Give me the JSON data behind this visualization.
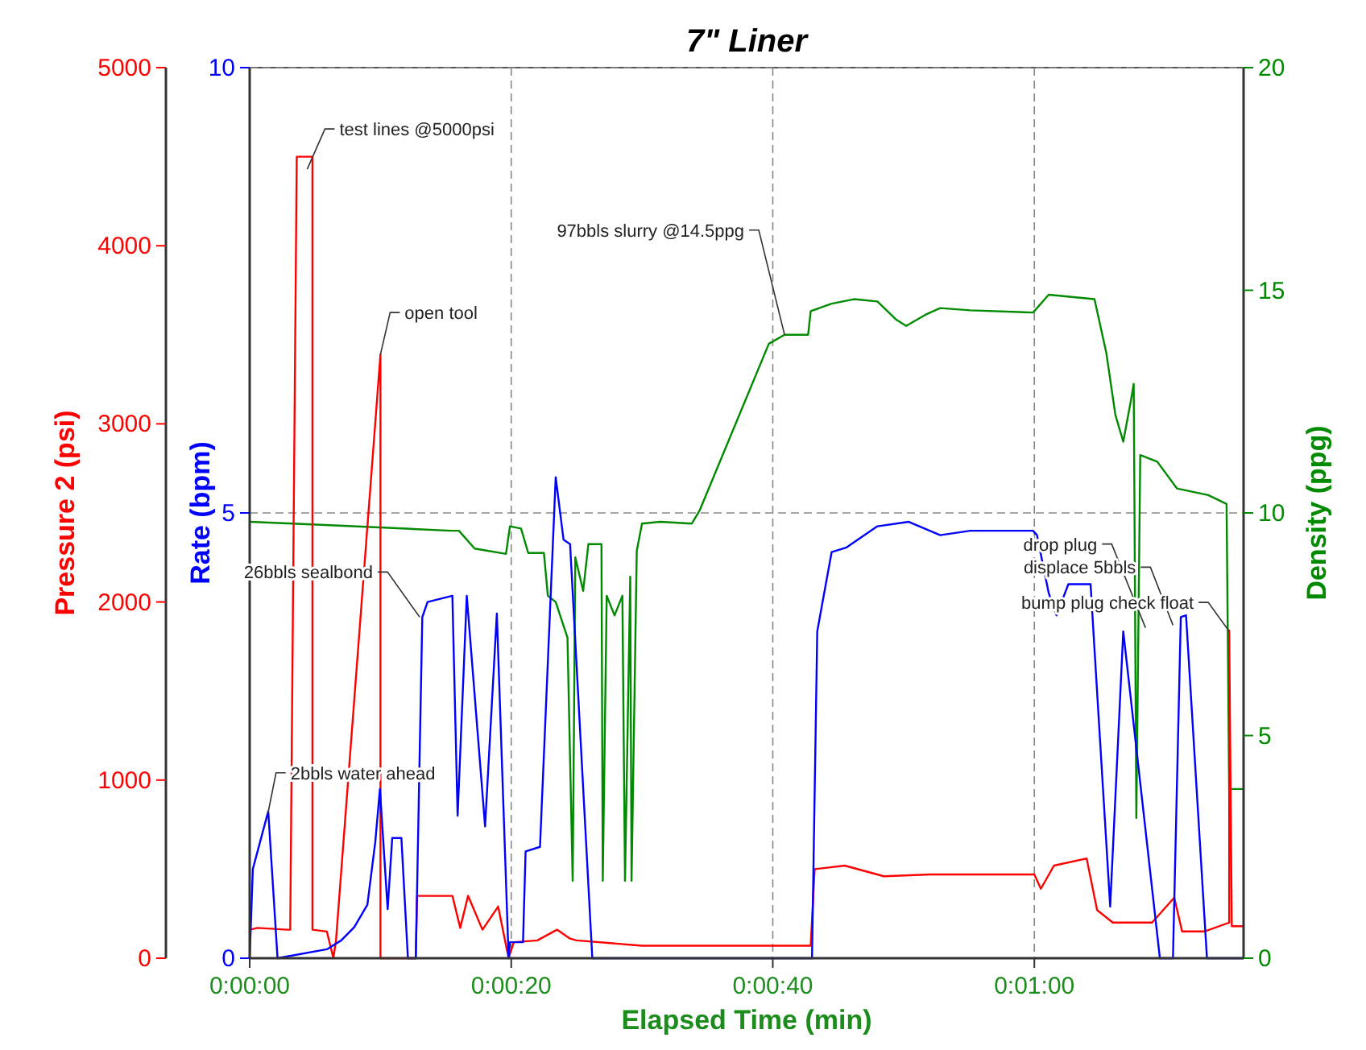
{
  "chart_data": {
    "type": "line",
    "title": "7\" Liner",
    "xlabel": "Elapsed Time (min)",
    "ylabel": "Rate (bpm)",
    "y2label": "Pressure 2 (psi)",
    "y3label": "Density (ppg)",
    "xlim": [
      0,
      76
    ],
    "xticks": [
      {
        "value": 0,
        "label": "0:00:00"
      },
      {
        "value": 20,
        "label": "0:00:20"
      },
      {
        "value": 40,
        "label": "0:00:40"
      },
      {
        "value": 60,
        "label": "0:01:00"
      }
    ],
    "ylim": [
      0,
      10
    ],
    "yticks": [
      0,
      5,
      10
    ],
    "y2lim": [
      0,
      5000
    ],
    "y2ticks": [
      0,
      1000,
      2000,
      3000,
      4000,
      5000
    ],
    "y3lim": [
      0,
      20
    ],
    "y3ticks": [
      0,
      5,
      10,
      15,
      20
    ],
    "grid": true,
    "line_style": "solid",
    "series": [
      {
        "color": "#008a00",
        "axis": "y3",
        "x": [
          0,
          5.8,
          15.4,
          16.0,
          17.2,
          19.6,
          19.9,
          20.75,
          21.3,
          22.5,
          22.8,
          23.4,
          24.3,
          24.7,
          24.9,
          25.5,
          25.9,
          26.9,
          27.0,
          27.3,
          27.9,
          28.5,
          28.7,
          29.1,
          29.2,
          29.6,
          30.0,
          31.4,
          33.8,
          34.4,
          39.7,
          40.9,
          42.7,
          42.9,
          44.5,
          46.2,
          48.0,
          49.4,
          50.2,
          51.8,
          52.8,
          55.1,
          59.9,
          61.1,
          64.6,
          65.5,
          66.2,
          66.8,
          67.4,
          67.6,
          67.8,
          68.1,
          69.4,
          70.9,
          73.3,
          74.7,
          74.9,
          76
        ],
        "values": [
          9.8,
          9.73,
          9.6,
          9.6,
          9.2,
          9.08,
          9.7,
          9.65,
          9.1,
          9.1,
          8.14,
          8.0,
          7.2,
          1.74,
          9.0,
          8.25,
          9.3,
          9.3,
          1.74,
          8.14,
          7.7,
          8.14,
          1.74,
          8.57,
          1.74,
          9.15,
          9.76,
          9.8,
          9.76,
          10.05,
          13.8,
          14.0,
          14.0,
          14.53,
          14.7,
          14.8,
          14.75,
          14.35,
          14.2,
          14.47,
          14.6,
          14.55,
          14.5,
          14.9,
          14.8,
          13.6,
          12.2,
          11.6,
          12.55,
          12.9,
          3.15,
          11.3,
          11.15,
          10.55,
          10.4,
          10.2,
          3.8,
          3.8
        ]
      },
      {
        "color": "#ff0000",
        "axis": "y2",
        "x": [
          0,
          0.6,
          2.9,
          3.1,
          3.6,
          4.8,
          4.8,
          5.9,
          6.4,
          6.6,
          10.0,
          10.0,
          12.7,
          12.8,
          15.5,
          16.1,
          16.7,
          17.8,
          19.0,
          19.8,
          20.2,
          22,
          23.5,
          24.5,
          25,
          30,
          42.9,
          43.2,
          45.5,
          48.5,
          52,
          60,
          60.5,
          61.5,
          64,
          64.8,
          66,
          69,
          70.7,
          71.3,
          73,
          74.9,
          74.9,
          75.1,
          76
        ],
        "values": [
          160,
          170,
          160,
          160,
          4500,
          4500,
          160,
          150,
          0,
          100,
          3390,
          0,
          0,
          350,
          350,
          170,
          350,
          160,
          290,
          0,
          90,
          100,
          160,
          110,
          100,
          70,
          70,
          500,
          520,
          460,
          470,
          470,
          390,
          520,
          560,
          270,
          200,
          200,
          340,
          150,
          150,
          200,
          1840,
          180,
          180
        ]
      },
      {
        "color": "#0000ff",
        "axis": "y",
        "x": [
          0,
          0.24,
          1.42,
          2.13,
          5.9,
          7,
          8,
          9,
          9.6,
          9.96,
          10.55,
          10.9,
          11.6,
          12.1,
          12.7,
          13.2,
          13.6,
          15.5,
          15.9,
          16.6,
          18.0,
          18.9,
          19.8,
          19.9,
          20.9,
          21.1,
          22.2,
          23.4,
          24.0,
          24.5,
          26.2,
          43.0,
          43.4,
          44.5,
          45.6,
          48,
          50.4,
          52.8,
          55.1,
          59.9,
          60.2,
          61.1,
          61.7,
          62.6,
          64.3,
          64.6,
          65.8,
          66.8,
          69.6,
          70.6,
          71.2,
          71.6,
          73.2,
          76
        ],
        "values": [
          0,
          1.0,
          1.65,
          0,
          0.1,
          0.2,
          0.35,
          0.6,
          1.3,
          1.9,
          0.55,
          1.35,
          1.35,
          0,
          0,
          3.83,
          4.0,
          4.07,
          1.6,
          4.07,
          1.48,
          3.87,
          0,
          0.18,
          0.18,
          1.2,
          1.25,
          5.4,
          4.7,
          4.65,
          0,
          0,
          3.67,
          4.56,
          4.61,
          4.85,
          4.9,
          4.75,
          4.8,
          4.8,
          4.75,
          4.1,
          3.85,
          4.2,
          4.2,
          3.47,
          0.58,
          3.67,
          0,
          0,
          3.83,
          3.85,
          0,
          0
        ]
      }
    ],
    "annotations": [
      {
        "text": "2bbls water ahead",
        "x": 1.4,
        "y": 1.63
      },
      {
        "text": "test lines @5000psi",
        "x": 4.4,
        "y": 8.86
      },
      {
        "text": "open tool",
        "x": 10.0,
        "y": 6.78
      },
      {
        "text": "26bbls sealbond",
        "x": 13.0,
        "y": 3.83
      },
      {
        "text": "97bbls slurry @14.5ppg",
        "x": 40.9,
        "y": 7.0
      },
      {
        "text": "drop plug",
        "x": 68.5,
        "y": 3.71
      },
      {
        "text": "displace 5bbls",
        "x": 70.6,
        "y": 3.74
      },
      {
        "text": "bump plug check float",
        "x": 74.9,
        "y": 3.67
      }
    ]
  }
}
